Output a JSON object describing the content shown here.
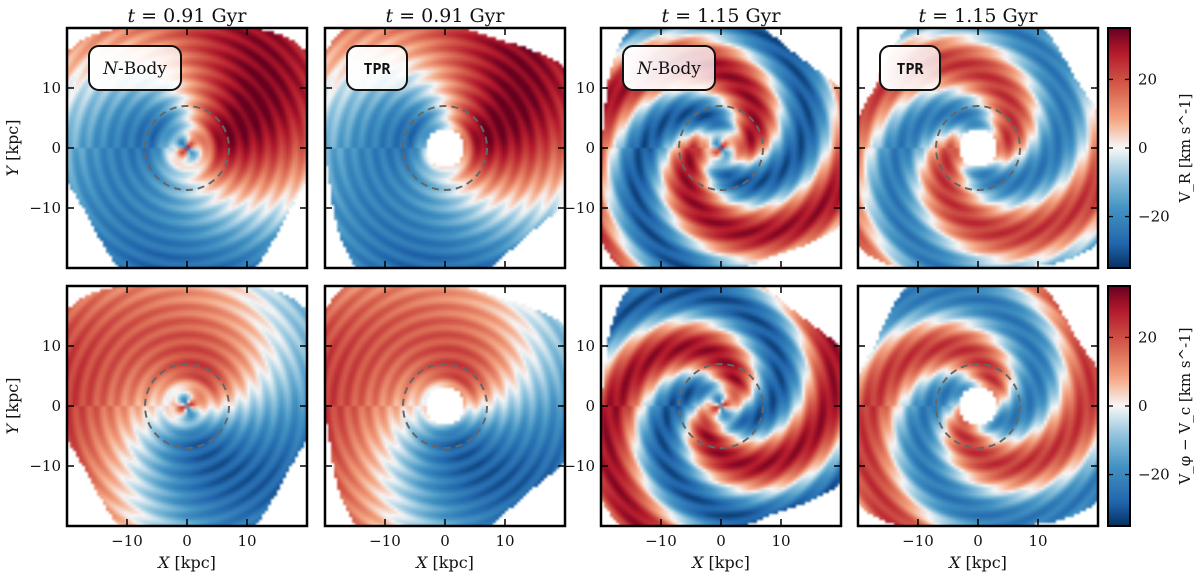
{
  "chart_data": {
    "type": "heatmap",
    "description_units": "kpc",
    "columns": [
      {
        "time_label": "t = 0.91 Gyr",
        "model": "N-Body",
        "model_style": "italic-N",
        "time_gyr": 0.91,
        "hole": false
      },
      {
        "time_label": "t = 0.91 Gyr",
        "model": "TPR",
        "model_style": "mono",
        "time_gyr": 0.91,
        "hole": true
      },
      {
        "time_label": "t = 1.15 Gyr",
        "model": "N-Body",
        "model_style": "italic-N",
        "time_gyr": 1.15,
        "hole": false
      },
      {
        "time_label": "t = 1.15 Gyr",
        "model": "TPR",
        "model_style": "mono",
        "time_gyr": 1.15,
        "hole": true
      }
    ],
    "rows": [
      {
        "quantity": "V_R",
        "colorbar_label": "V_R [km s^-1]",
        "range": [
          -35,
          35
        ]
      },
      {
        "quantity": "V_phi - V_c",
        "colorbar_label": "V_φ − V_c [km s^-1]",
        "range": [
          -35,
          35
        ]
      }
    ],
    "xlim": [
      -20,
      20
    ],
    "ylim": [
      -20,
      20
    ],
    "x_ticks": [
      -10,
      0,
      10
    ],
    "y_ticks": [
      10,
      0,
      -10
    ],
    "x_tick_labels": [
      "−10",
      "0",
      "10"
    ],
    "y_tick_labels": [
      "10",
      "0",
      "−10"
    ],
    "colorbar_ticks": [
      20,
      0,
      -20
    ],
    "colorbar_tick_labels": [
      "20",
      "0",
      "−20"
    ],
    "xlabel": "X [kpc]",
    "ylabel": "Y [kpc]",
    "guide_circle_radius_kpc": 7,
    "colormap": "RdBu_r",
    "colors": {
      "low": "#053061",
      "mid": "#f7f7f7",
      "high": "#67001f",
      "guide": "#666666"
    }
  }
}
